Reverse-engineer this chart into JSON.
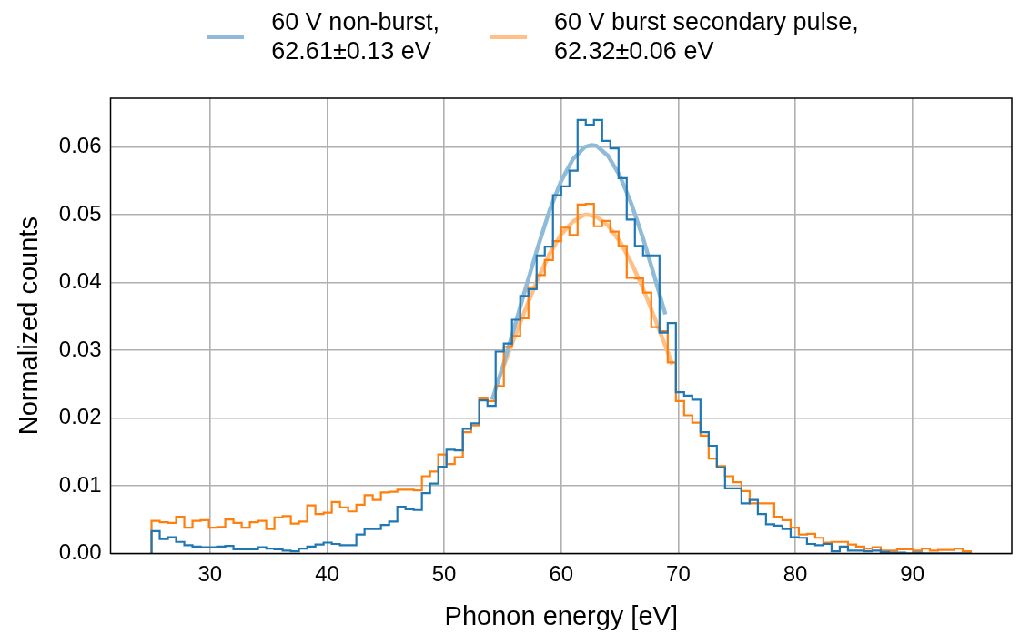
{
  "chart_data": {
    "type": "histogram",
    "xlabel": "Phonon energy [eV]",
    "ylabel": "Normalized counts",
    "bins": [
      25,
      25.7,
      26.4,
      27.1,
      27.8,
      28.5,
      29.2,
      29.9,
      30.6,
      31.3,
      32,
      32.7,
      33.4,
      34.1,
      34.8,
      35.5,
      36.2,
      36.9,
      37.6,
      38.3,
      39,
      39.7,
      40.4,
      41.1,
      41.8,
      42.5,
      43.2,
      43.9,
      44.6,
      45.3,
      46,
      46.7,
      47.4,
      48.1,
      48.8,
      49.5,
      50.2,
      50.9,
      51.6,
      52.3,
      53,
      53.7,
      54.4,
      55.1,
      55.8,
      56.5,
      57.2,
      57.9,
      58.6,
      59.3,
      60,
      60.7,
      61.4,
      62.1,
      62.8,
      63.5,
      64.2,
      64.9,
      65.6,
      66.3,
      67,
      67.7,
      68.4,
      69.1,
      69.8,
      70.5,
      71.2,
      71.9,
      72.6,
      73.3,
      74,
      74.7,
      75.4,
      76.1,
      76.8,
      77.5,
      78.2,
      78.9,
      79.6,
      80.3,
      81,
      81.7,
      82.4,
      83.1,
      83.8,
      84.5,
      85.2,
      85.9,
      86.6,
      87.3,
      88,
      88.7,
      89.4,
      90.1,
      90.8,
      91.5,
      92.2,
      92.9,
      93.6,
      94.3,
      95
    ],
    "series": [
      {
        "color": "#1f77b4",
        "values": [
          0.0033,
          0.0021,
          0.0024,
          0.0017,
          0.0012,
          0.001,
          0.0009,
          0.0009,
          0.001,
          0.0011,
          0.0006,
          0.0006,
          0.0006,
          0.0009,
          0.0007,
          0.0006,
          0.0004,
          0.0003,
          0.0007,
          0.001,
          0.0013,
          0.0016,
          0.0014,
          0.0012,
          0.0012,
          0.0028,
          0.0036,
          0.0036,
          0.0042,
          0.0047,
          0.0069,
          0.0065,
          0.0064,
          0.0089,
          0.0103,
          0.0128,
          0.0153,
          0.0152,
          0.0184,
          0.0192,
          0.0226,
          0.0218,
          0.0298,
          0.031,
          0.0345,
          0.038,
          0.039,
          0.044,
          0.0453,
          0.0529,
          0.0542,
          0.0565,
          0.064,
          0.0633,
          0.064,
          0.0609,
          0.0598,
          0.0554,
          0.0493,
          0.0454,
          0.044,
          0.044,
          0.0326,
          0.034,
          0.0238,
          0.0233,
          0.0227,
          0.0179,
          0.0159,
          0.0127,
          0.0096,
          0.0096,
          0.0074,
          0.0079,
          0.0058,
          0.0043,
          0.0041,
          0.0036,
          0.0024,
          0.0023,
          0.0014,
          0.0012,
          0.0014,
          0.0003,
          0.001,
          0.0004,
          0.0004,
          0.0003,
          0.0004,
          0.0002,
          0.0001,
          0.0001,
          0,
          0.0001,
          0,
          0,
          0,
          0,
          0,
          0
        ]
      },
      {
        "color": "#ff7f0e",
        "values": [
          0.0048,
          0.0046,
          0.0045,
          0.0054,
          0.0038,
          0.0048,
          0.0049,
          0.0038,
          0.0039,
          0.005,
          0.0045,
          0.0038,
          0.0046,
          0.0048,
          0.0036,
          0.0053,
          0.0055,
          0.0044,
          0.0047,
          0.0071,
          0.0058,
          0.006,
          0.0076,
          0.0068,
          0.0062,
          0.0072,
          0.0086,
          0.0079,
          0.009,
          0.0091,
          0.0094,
          0.0094,
          0.0093,
          0.0114,
          0.0121,
          0.0146,
          0.0132,
          0.0142,
          0.0179,
          0.0189,
          0.0229,
          0.0225,
          0.0247,
          0.0305,
          0.0321,
          0.0347,
          0.0393,
          0.0411,
          0.0433,
          0.0461,
          0.0481,
          0.047,
          0.0515,
          0.0516,
          0.0483,
          0.0491,
          0.0475,
          0.0454,
          0.0407,
          0.0406,
          0.0385,
          0.0334,
          0.0328,
          0.0282,
          0.0225,
          0.0204,
          0.0193,
          0.0174,
          0.014,
          0.0129,
          0.0114,
          0.0105,
          0.0092,
          0.0074,
          0.0074,
          0.0074,
          0.0054,
          0.0049,
          0.0038,
          0.0028,
          0.0029,
          0.0023,
          0.0016,
          0.0017,
          0.0017,
          0.0013,
          0.001,
          0.0007,
          0.0009,
          0.0004,
          0.0004,
          0.0006,
          0.0006,
          0.0004,
          0.0007,
          0.0004,
          0.0005,
          0.0005,
          0.0007,
          0.0003
        ]
      },
      {
        "type": "line",
        "name": "60 V non-burst, 62.61±0.13 eV",
        "color": "#8fbbd9",
        "x": [
          54.1,
          55,
          56,
          57,
          58,
          59,
          60,
          61,
          62,
          62.6,
          63,
          64,
          65,
          66,
          67,
          68,
          68.9
        ],
        "values": [
          0.0227,
          0.0275,
          0.0334,
          0.0394,
          0.0452,
          0.0506,
          0.055,
          0.0582,
          0.06,
          0.0603,
          0.0602,
          0.0587,
          0.0558,
          0.0516,
          0.0465,
          0.0407,
          0.0353
        ]
      },
      {
        "type": "line",
        "name": "60 V burst secondary pulse, 62.32±0.06 eV",
        "color": "#ffbf86",
        "x": [
          54.6,
          55,
          56,
          57,
          58,
          59,
          60,
          61,
          62,
          62.3,
          63,
          64,
          65,
          66,
          67,
          68,
          69,
          69.5
        ],
        "values": [
          0.0255,
          0.0273,
          0.0319,
          0.0363,
          0.0405,
          0.0442,
          0.0471,
          0.049,
          0.05,
          0.05,
          0.0497,
          0.0484,
          0.0461,
          0.0429,
          0.0391,
          0.0347,
          0.0302,
          0.0279
        ]
      }
    ],
    "xlim": [
      21.5,
      98.5
    ],
    "xticks": [
      30,
      40,
      50,
      60,
      70,
      80,
      90
    ],
    "ylim": [
      0,
      0.0672
    ],
    "yticks": [
      {
        "value": 0,
        "label": "0.00"
      },
      {
        "value": 0.01,
        "label": "0.01"
      },
      {
        "value": 0.02,
        "label": "0.02"
      },
      {
        "value": 0.03,
        "label": "0.03"
      },
      {
        "value": 0.04,
        "label": "0.04"
      },
      {
        "value": 0.05,
        "label": "0.05"
      },
      {
        "value": 0.06,
        "label": "0.06"
      }
    ],
    "grid": true,
    "legend": "top"
  }
}
